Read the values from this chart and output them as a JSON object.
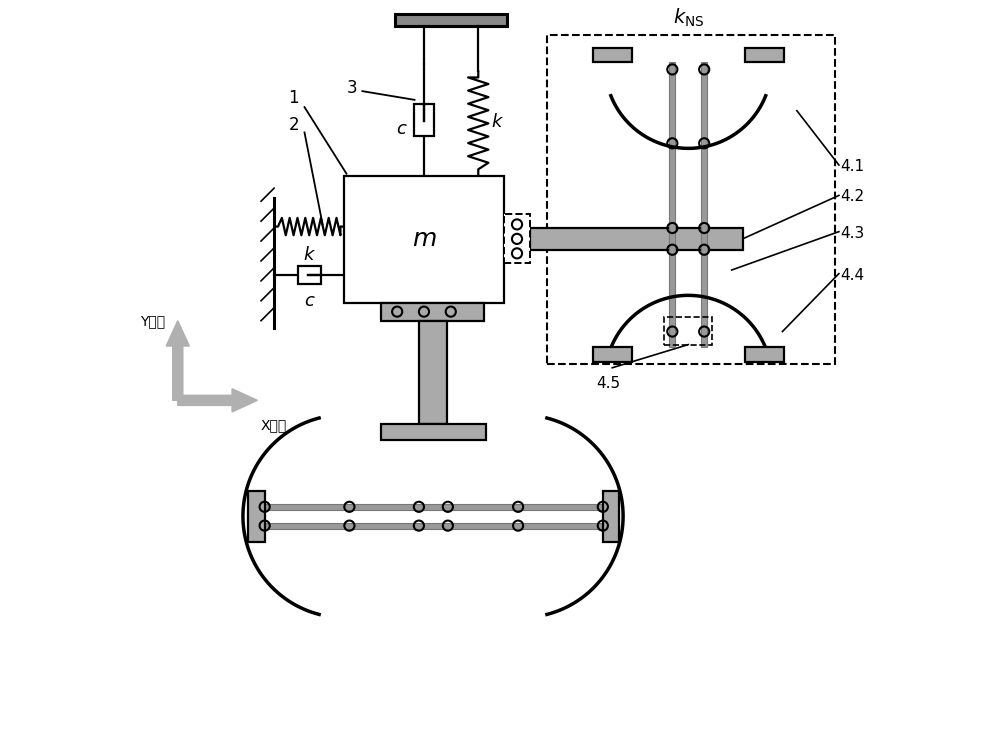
{
  "bg_color": "#ffffff",
  "lc": "#000000",
  "gray_fill": "#b0b0b0",
  "rod_fill": "#aaaaaa",
  "lw_main": 1.6,
  "lw_thick": 2.2,
  "lw_spring": 1.6,
  "lw_arc": 2.5
}
